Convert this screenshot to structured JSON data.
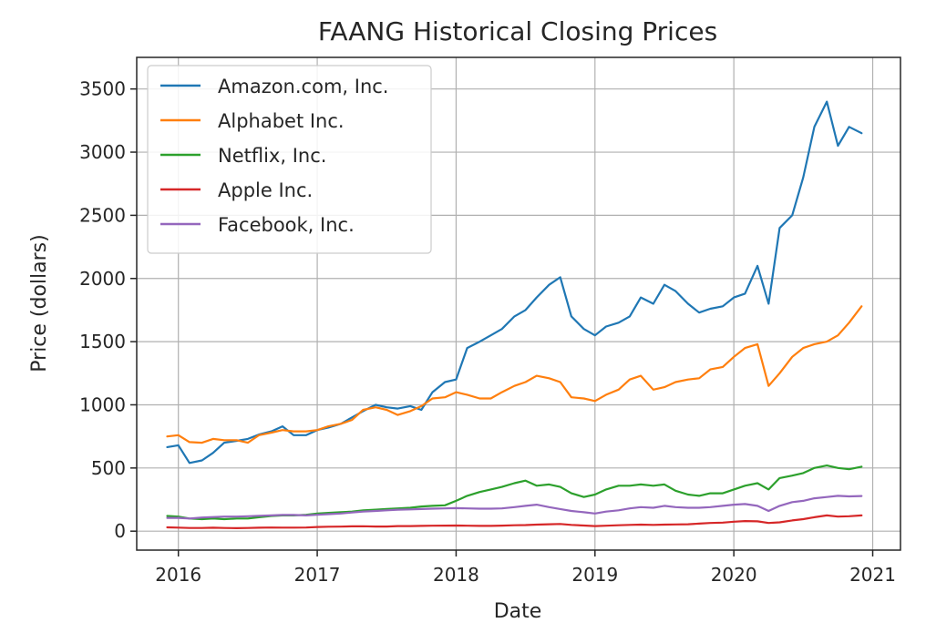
{
  "chart_data": {
    "type": "line",
    "title": "FAANG Historical Closing Prices",
    "xlabel": "Date",
    "ylabel": "Price (dollars)",
    "xlim": [
      2015.7,
      2021.2
    ],
    "ylim": [
      -150,
      3750
    ],
    "xticks": [
      2016,
      2017,
      2018,
      2019,
      2020,
      2021
    ],
    "xtick_labels": [
      "2016",
      "2017",
      "2018",
      "2019",
      "2020",
      "2021"
    ],
    "yticks": [
      0,
      500,
      1000,
      1500,
      2000,
      2500,
      3000,
      3500
    ],
    "ytick_labels": [
      "0",
      "500",
      "1000",
      "1500",
      "2000",
      "2500",
      "3000",
      "3500"
    ],
    "grid": true,
    "legend_position": "top-left",
    "x": [
      2015.92,
      2016.0,
      2016.08,
      2016.17,
      2016.25,
      2016.33,
      2016.42,
      2016.5,
      2016.58,
      2016.67,
      2016.75,
      2016.83,
      2016.92,
      2017.0,
      2017.08,
      2017.17,
      2017.25,
      2017.33,
      2017.42,
      2017.5,
      2017.58,
      2017.67,
      2017.75,
      2017.83,
      2017.92,
      2018.0,
      2018.08,
      2018.17,
      2018.25,
      2018.33,
      2018.42,
      2018.5,
      2018.58,
      2018.67,
      2018.75,
      2018.83,
      2018.92,
      2019.0,
      2019.08,
      2019.17,
      2019.25,
      2019.33,
      2019.42,
      2019.5,
      2019.58,
      2019.67,
      2019.75,
      2019.83,
      2019.92,
      2020.0,
      2020.08,
      2020.17,
      2020.25,
      2020.33,
      2020.42,
      2020.5,
      2020.58,
      2020.67,
      2020.75,
      2020.83,
      2020.92
    ],
    "series": [
      {
        "name": "Amazon.com, Inc.",
        "color": "#1f77b4",
        "values": [
          665,
          680,
          540,
          560,
          620,
          700,
          715,
          730,
          765,
          790,
          830,
          760,
          760,
          800,
          820,
          850,
          900,
          950,
          1000,
          980,
          970,
          990,
          960,
          1100,
          1180,
          1200,
          1450,
          1500,
          1550,
          1600,
          1700,
          1750,
          1850,
          1950,
          2010,
          1700,
          1600,
          1550,
          1620,
          1650,
          1700,
          1850,
          1800,
          1950,
          1900,
          1800,
          1730,
          1760,
          1780,
          1850,
          1880,
          2100,
          1800,
          2400,
          2500,
          2800,
          3200,
          3400,
          3050,
          3200,
          3150
        ]
      },
      {
        "name": "Alphabet Inc.",
        "color": "#ff7f0e",
        "values": [
          750,
          760,
          705,
          700,
          730,
          720,
          720,
          700,
          760,
          780,
          800,
          790,
          790,
          800,
          830,
          850,
          880,
          960,
          980,
          960,
          920,
          950,
          990,
          1050,
          1060,
          1100,
          1080,
          1050,
          1050,
          1100,
          1150,
          1180,
          1230,
          1210,
          1180,
          1060,
          1050,
          1030,
          1080,
          1120,
          1200,
          1230,
          1120,
          1140,
          1180,
          1200,
          1210,
          1280,
          1300,
          1380,
          1450,
          1480,
          1150,
          1250,
          1380,
          1450,
          1480,
          1500,
          1550,
          1650,
          1780
        ]
      },
      {
        "name": "Netflix, Inc.",
        "color": "#2ca02c",
        "values": [
          120,
          115,
          100,
          95,
          100,
          95,
          100,
          100,
          110,
          120,
          125,
          125,
          130,
          140,
          145,
          150,
          155,
          165,
          170,
          175,
          180,
          185,
          195,
          200,
          205,
          240,
          280,
          310,
          330,
          350,
          380,
          400,
          360,
          370,
          350,
          300,
          270,
          290,
          330,
          360,
          360,
          370,
          360,
          370,
          320,
          290,
          280,
          300,
          300,
          330,
          360,
          380,
          330,
          420,
          440,
          460,
          500,
          520,
          500,
          490,
          510
        ]
      },
      {
        "name": "Apple Inc.",
        "color": "#d62728",
        "values": [
          30,
          28,
          25,
          25,
          27,
          25,
          24,
          25,
          27,
          29,
          28,
          28,
          29,
          33,
          35,
          36,
          38,
          39,
          37,
          37,
          40,
          40,
          42,
          43,
          44,
          45,
          43,
          42,
          42,
          44,
          47,
          48,
          52,
          55,
          57,
          50,
          45,
          40,
          43,
          47,
          50,
          52,
          50,
          52,
          53,
          55,
          60,
          65,
          68,
          75,
          80,
          78,
          65,
          70,
          85,
          95,
          110,
          125,
          115,
          118,
          125
        ]
      },
      {
        "name": "Facebook, Inc.",
        "color": "#9467bd",
        "values": [
          105,
          105,
          100,
          108,
          112,
          115,
          115,
          118,
          122,
          125,
          128,
          128,
          125,
          130,
          135,
          140,
          148,
          155,
          160,
          165,
          170,
          172,
          175,
          178,
          180,
          182,
          180,
          178,
          178,
          180,
          190,
          200,
          210,
          190,
          175,
          160,
          150,
          140,
          155,
          165,
          180,
          190,
          185,
          200,
          190,
          185,
          185,
          190,
          200,
          210,
          215,
          200,
          160,
          200,
          230,
          240,
          260,
          270,
          280,
          275,
          278
        ]
      }
    ]
  }
}
